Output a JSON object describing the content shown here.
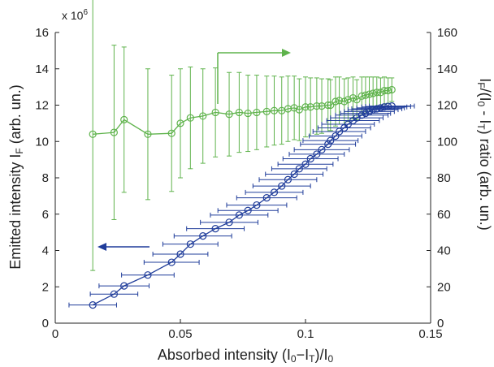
{
  "chart_data": {
    "type": "scatter",
    "xlabel": "Absorbed intensity (I₀−I_T)/I₀",
    "ylabel_left": "Emitted intensity  I_F (arb. un.)",
    "ylabel_right": "I_F/(I₀ - I_T)  ratio  (arb. un.)",
    "left_axis_multiplier": "x 10^6",
    "xlim": [
      0,
      0.15
    ],
    "ylim_left": [
      0,
      16
    ],
    "ylim_right": [
      0,
      160
    ],
    "x_ticks": [
      "0",
      "0.05",
      "0.1",
      "0.15"
    ],
    "y_left_ticks": [
      "0",
      "2",
      "4",
      "6",
      "8",
      "10",
      "12",
      "14",
      "16"
    ],
    "y_right_ticks": [
      "0",
      "20",
      "40",
      "60",
      "80",
      "100",
      "120",
      "140",
      "160"
    ],
    "grid": false,
    "series": [
      {
        "axis": "left",
        "color": "#1f3c9a",
        "arrow": "left",
        "x": [
          0.015,
          0.0235,
          0.0275,
          0.037,
          0.0465,
          0.05,
          0.054,
          0.059,
          0.064,
          0.0695,
          0.0735,
          0.077,
          0.0805,
          0.0845,
          0.0875,
          0.0905,
          0.093,
          0.0955,
          0.0975,
          0.1,
          0.102,
          0.1045,
          0.1065,
          0.109,
          0.11,
          0.112,
          0.1135,
          0.1155,
          0.117,
          0.119,
          0.1205,
          0.1225,
          0.124,
          0.1255,
          0.127,
          0.1285,
          0.13,
          0.1315,
          0.133,
          0.1345
        ],
        "y": [
          1.0,
          1.6,
          2.05,
          2.65,
          3.35,
          3.8,
          4.35,
          4.8,
          5.2,
          5.55,
          5.95,
          6.2,
          6.5,
          6.9,
          7.2,
          7.55,
          7.9,
          8.2,
          8.5,
          8.75,
          9.05,
          9.3,
          9.55,
          9.85,
          10.05,
          10.3,
          10.55,
          10.75,
          10.95,
          11.15,
          11.3,
          11.45,
          11.55,
          11.65,
          11.75,
          11.8,
          11.85,
          11.9,
          11.93,
          11.95
        ],
        "xerr": [
          0.0095,
          0.0095,
          0.01,
          0.0105,
          0.011,
          0.011,
          0.011,
          0.0115,
          0.0115,
          0.0115,
          0.0115,
          0.012,
          0.012,
          0.012,
          0.0115,
          0.0115,
          0.0115,
          0.0115,
          0.011,
          0.011,
          0.011,
          0.011,
          0.011,
          0.011,
          0.011,
          0.0105,
          0.0105,
          0.0105,
          0.0105,
          0.0105,
          0.0105,
          0.0105,
          0.01,
          0.01,
          0.01,
          0.01,
          0.0095,
          0.009,
          0.009,
          0.009
        ]
      },
      {
        "axis": "right",
        "color": "#5fb34c",
        "arrow": "right",
        "x": [
          0.015,
          0.0235,
          0.0275,
          0.037,
          0.0465,
          0.05,
          0.054,
          0.059,
          0.064,
          0.0695,
          0.0735,
          0.077,
          0.0805,
          0.0845,
          0.0875,
          0.0905,
          0.093,
          0.0955,
          0.0975,
          0.1,
          0.102,
          0.1045,
          0.1065,
          0.109,
          0.11,
          0.112,
          0.1135,
          0.1155,
          0.117,
          0.119,
          0.1205,
          0.1225,
          0.124,
          0.1255,
          0.127,
          0.1285,
          0.13,
          0.1315,
          0.133,
          0.1345
        ],
        "y": [
          104,
          105,
          112,
          104,
          104.5,
          110,
          113,
          114,
          116,
          115,
          116,
          115.5,
          116,
          116.5,
          117,
          117,
          118,
          118.5,
          117.5,
          119,
          119,
          119.5,
          119.5,
          120,
          120,
          122,
          122.5,
          122,
          123,
          124,
          123,
          125,
          125.5,
          126,
          126.5,
          127,
          127,
          128,
          128,
          128.5
        ],
        "yerr": [
          75,
          48,
          40,
          36,
          32,
          30,
          28,
          26,
          24.5,
          23,
          22,
          21,
          20.5,
          19.5,
          19,
          18.5,
          18,
          17.5,
          17,
          16.5,
          16,
          15.5,
          15,
          14.5,
          14,
          13.5,
          13,
          12.5,
          12,
          11.5,
          11,
          10.5,
          10,
          9.5,
          9,
          8.5,
          8,
          7.5,
          7,
          6.5
        ]
      }
    ]
  }
}
